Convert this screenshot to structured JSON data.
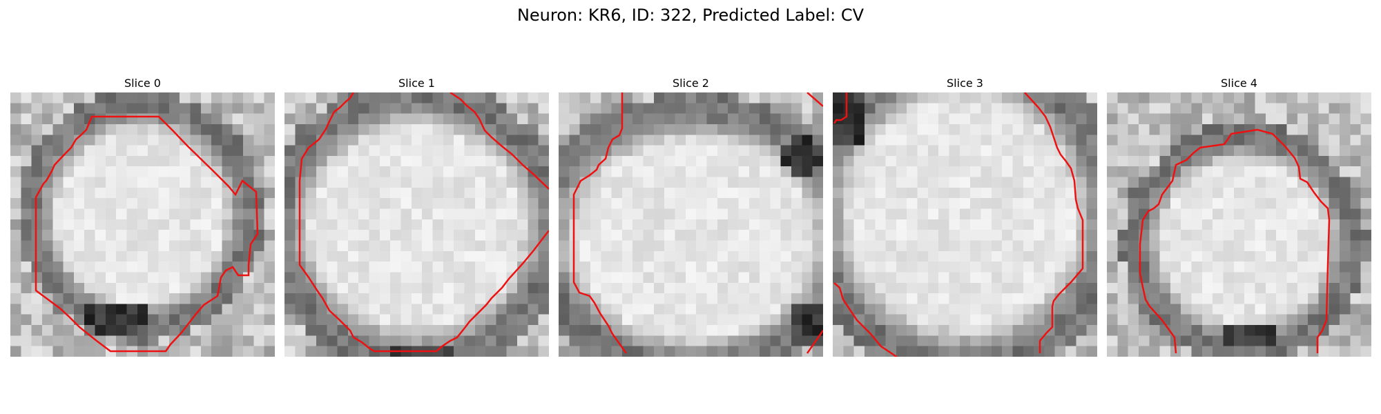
{
  "figure": {
    "title": "Neuron: KR6, ID: 322, Predicted Label: CV"
  },
  "colors": {
    "contour": "#ee1111"
  },
  "slices": [
    {
      "label": "Slice 0"
    },
    {
      "label": "Slice 1"
    },
    {
      "label": "Slice 2"
    },
    {
      "label": "Slice 3"
    },
    {
      "label": "Slice 4"
    }
  ]
}
